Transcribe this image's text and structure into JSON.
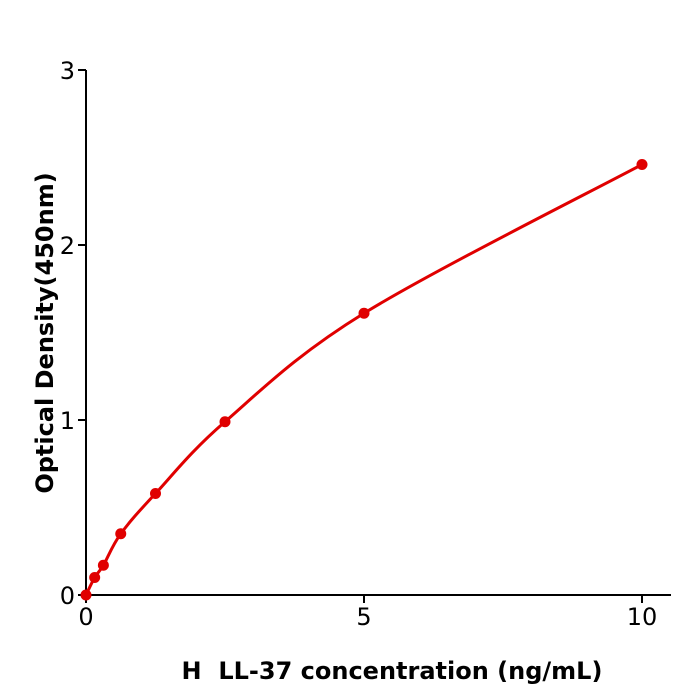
{
  "chart_data": {
    "type": "line",
    "title": "",
    "xlabel": "H  LL-37 concentration (ng/mL)",
    "ylabel": "Optical Density(450nm)",
    "xlim": [
      0,
      10.5
    ],
    "ylim": [
      0,
      3
    ],
    "xticks": [
      "0",
      "5",
      "10"
    ],
    "yticks": [
      "0",
      "1",
      "2",
      "3"
    ],
    "grid": false,
    "legend": "none",
    "color": "#e00000",
    "series": [
      {
        "x": [
          0,
          0.156,
          0.3125,
          0.625,
          1.25,
          2.5,
          5,
          10
        ],
        "y": [
          0.0,
          0.1,
          0.17,
          0.35,
          0.58,
          0.99,
          1.61,
          2.46
        ]
      }
    ]
  }
}
